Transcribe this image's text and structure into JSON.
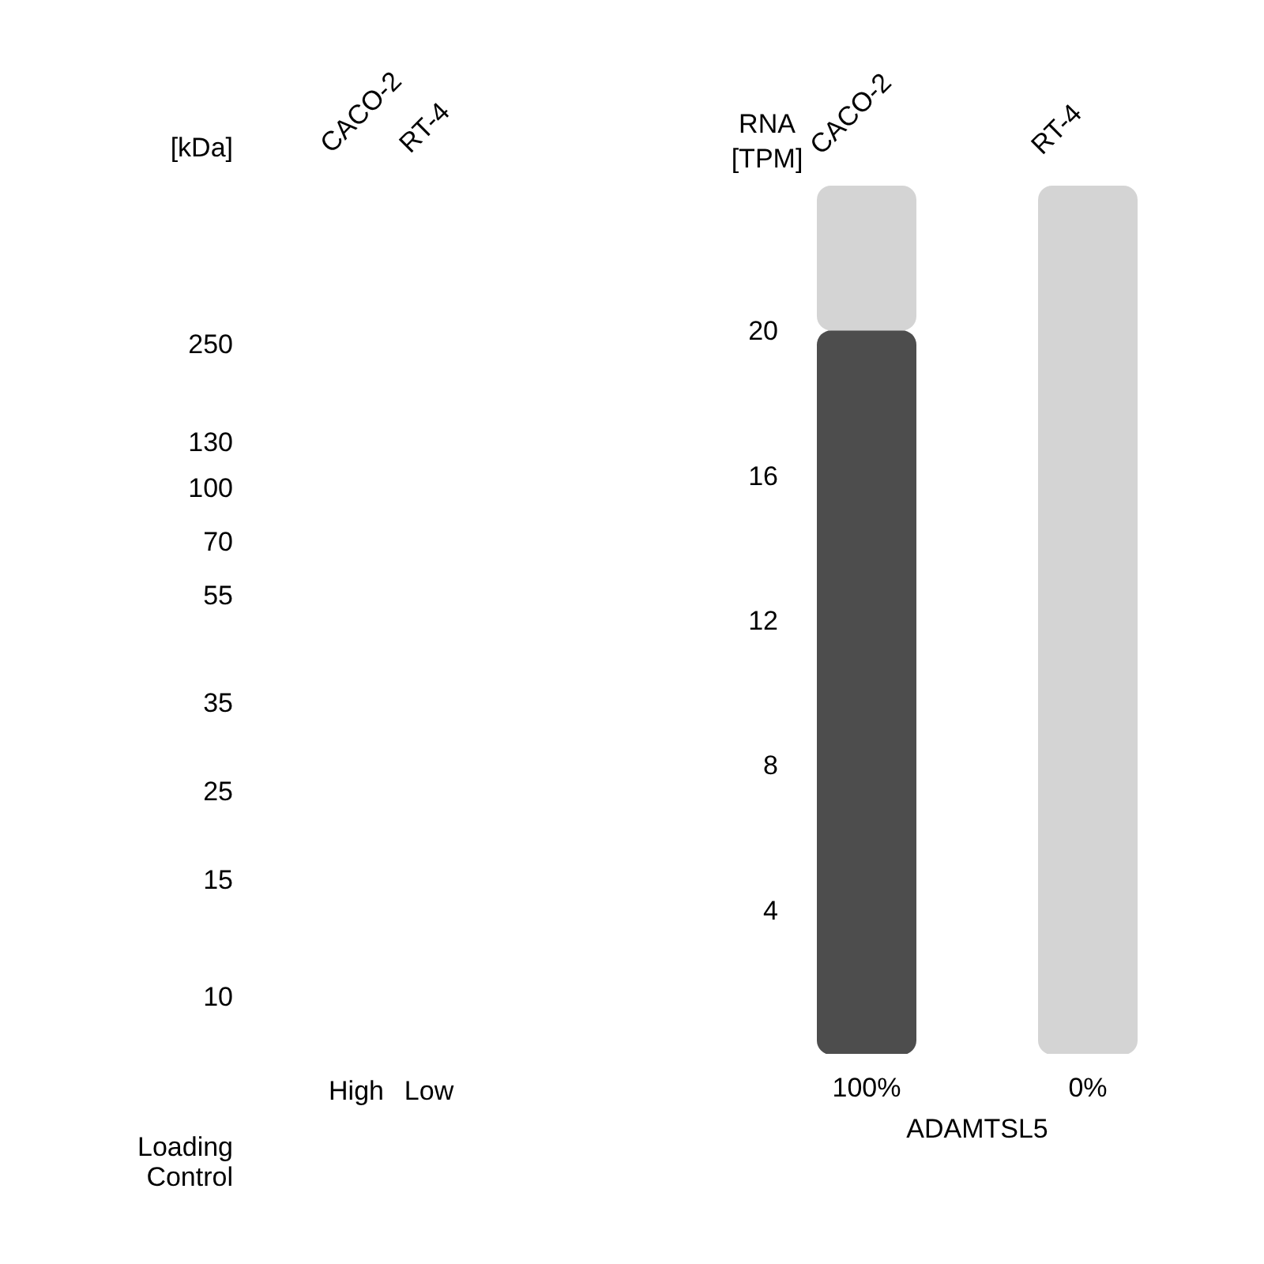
{
  "chart_data": {
    "type": "bar",
    "stacked": true,
    "categories": [
      "CACO-2",
      "RT-4"
    ],
    "series": [
      {
        "color": "#4d4d4d",
        "values": [
          20,
          0
        ]
      },
      {
        "color": "#d4d4d4",
        "values": [
          4,
          24
        ]
      }
    ],
    "ylabel": "RNA [TPM]",
    "xlabel": "ADAMTSL5",
    "ylim": [
      0,
      24
    ],
    "yticks": [
      4,
      8,
      12,
      16,
      20
    ],
    "annotations": [
      "100%",
      "0%",
      "[kDa]",
      "250",
      "130",
      "100",
      "70",
      "55",
      "35",
      "25",
      "15",
      "10",
      "CACO-2",
      "RT-4",
      "High",
      "Low",
      "Loading Control"
    ]
  }
}
